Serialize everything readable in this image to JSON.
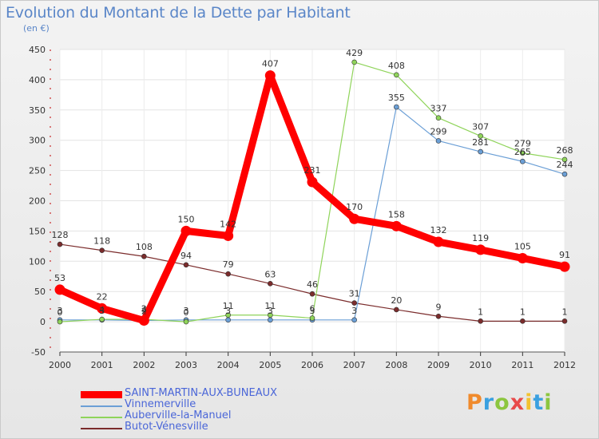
{
  "header": {
    "title": "Evolution du Montant de la Dette par Habitant",
    "unit": "(en €)"
  },
  "logo": {
    "letters": [
      "P",
      "r",
      "o",
      "x",
      "i",
      "t",
      "i"
    ]
  },
  "chart_data": {
    "type": "line",
    "title": "Evolution du Montant de la Dette par Habitant",
    "ylabel": "(en €)",
    "xlabel": "",
    "x": [
      "2000",
      "2001",
      "2002",
      "2003",
      "2004",
      "2005",
      "2006",
      "2007",
      "2008",
      "2009",
      "2010",
      "2011",
      "2012"
    ],
    "ylim": [
      -50,
      450
    ],
    "yticks": [
      -50,
      0,
      50,
      100,
      150,
      200,
      250,
      300,
      350,
      400,
      450
    ],
    "grid": true,
    "legend_position": "bottom-left",
    "series": [
      {
        "name": "SAINT-MARTIN-AUX-BUNEAUX",
        "color": "#ff0000",
        "emphasis": true,
        "values": [
          53,
          22,
          2,
          150,
          142,
          407,
          231,
          170,
          158,
          132,
          119,
          105,
          91
        ]
      },
      {
        "name": "Vinnemerville",
        "color": "#6b9fd6",
        "values": [
          3,
          3,
          2,
          3,
          3,
          3,
          3,
          3,
          355,
          299,
          281,
          265,
          244
        ]
      },
      {
        "name": "Auberville-la-Manuel",
        "color": "#8fd45a",
        "values": [
          0,
          4,
          4,
          0,
          11,
          11,
          6,
          429,
          408,
          337,
          307,
          279,
          268
        ]
      },
      {
        "name": "Butot-Vénesville",
        "color": "#7b2c2c",
        "values": [
          128,
          118,
          108,
          94,
          79,
          63,
          46,
          31,
          20,
          9,
          1,
          1,
          1
        ]
      }
    ]
  }
}
